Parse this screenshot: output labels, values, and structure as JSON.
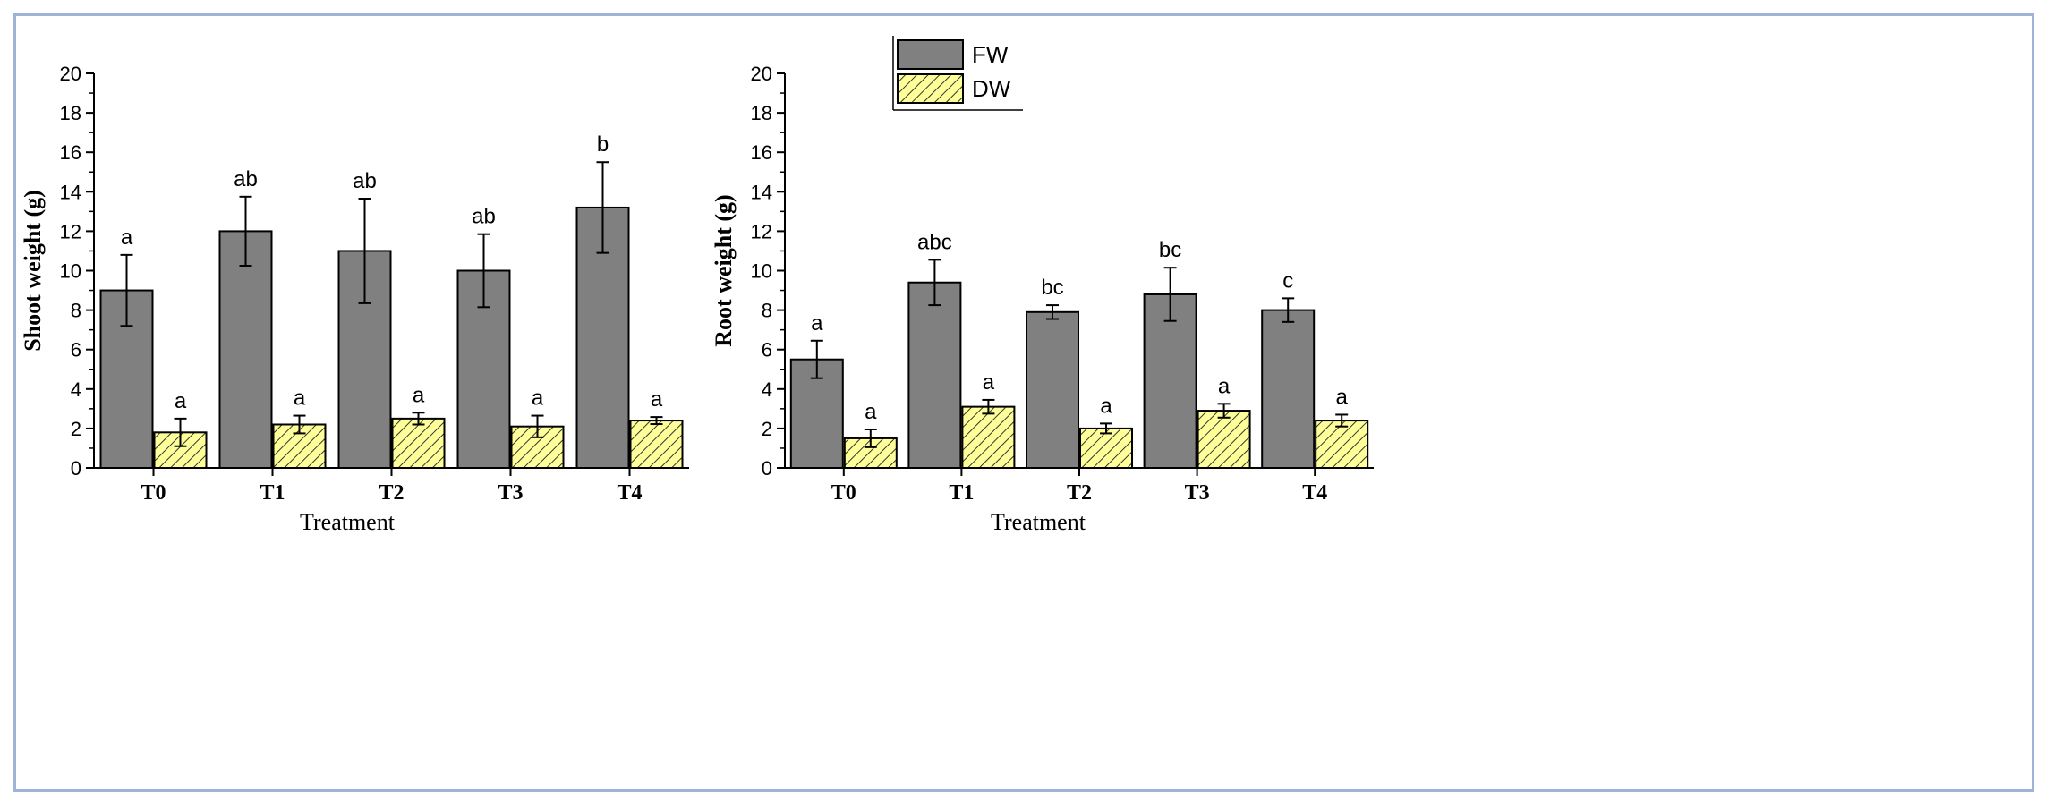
{
  "colors": {
    "frame": "#9db4d6",
    "fw_fill": "#808080",
    "dw_fill": "#ffff99",
    "dw_hatch": "#333333",
    "axis": "#000000"
  },
  "legend": {
    "items": [
      {
        "name": "FW",
        "style": "solid-gray"
      },
      {
        "name": "DW",
        "style": "yellow-hatched"
      }
    ],
    "placement": "top-center"
  },
  "chart_data": [
    {
      "type": "bar",
      "title": "",
      "xlabel": "Treatment",
      "ylabel": "Shoot weight (g)",
      "ylim": [
        0,
        20
      ],
      "yticks": [
        0,
        2,
        4,
        6,
        8,
        10,
        12,
        14,
        16,
        18,
        20
      ],
      "categories": [
        "T0",
        "T1",
        "T2",
        "T3",
        "T4"
      ],
      "series": [
        {
          "name": "FW",
          "values": [
            9.0,
            12.0,
            11.0,
            10.0,
            13.2
          ],
          "errors": [
            1.8,
            1.75,
            2.65,
            1.85,
            2.3
          ],
          "labels": [
            "a",
            "ab",
            "ab",
            "ab",
            "b"
          ]
        },
        {
          "name": "DW",
          "values": [
            1.8,
            2.2,
            2.5,
            2.1,
            2.4
          ],
          "errors": [
            0.7,
            0.45,
            0.3,
            0.55,
            0.18
          ],
          "labels": [
            "a",
            "a",
            "a",
            "a",
            "a"
          ]
        }
      ]
    },
    {
      "type": "bar",
      "title": "",
      "xlabel": "Treatment",
      "ylabel": "Root weight (g)",
      "ylim": [
        0,
        20
      ],
      "yticks": [
        0,
        2,
        4,
        6,
        8,
        10,
        12,
        14,
        16,
        18,
        20
      ],
      "categories": [
        "T0",
        "T1",
        "T2",
        "T3",
        "T4"
      ],
      "series": [
        {
          "name": "FW",
          "values": [
            5.5,
            9.4,
            7.9,
            8.8,
            8.0
          ],
          "errors": [
            0.95,
            1.15,
            0.35,
            1.35,
            0.6
          ],
          "labels": [
            "a",
            "abc",
            "bc",
            "bc",
            "c"
          ]
        },
        {
          "name": "DW",
          "values": [
            1.5,
            3.1,
            2.0,
            2.9,
            2.4
          ],
          "errors": [
            0.45,
            0.35,
            0.25,
            0.35,
            0.3
          ],
          "labels": [
            "a",
            "a",
            "a",
            "a",
            "a"
          ]
        }
      ]
    }
  ]
}
